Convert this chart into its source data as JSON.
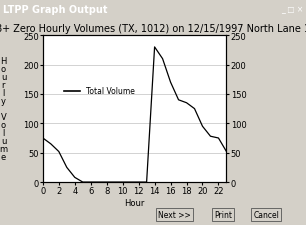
{
  "title": "8+ Zero Hourly Volumes (TX, 1012) on 12/15/1997 North Lane 1",
  "xlabel": "Hour",
  "hours": [
    0,
    1,
    2,
    3,
    4,
    5,
    6,
    7,
    8,
    9,
    10,
    11,
    12,
    13,
    14,
    15,
    16,
    17,
    18,
    19,
    20,
    21,
    22,
    23
  ],
  "volumes": [
    75,
    65,
    52,
    25,
    8,
    0,
    0,
    0,
    0,
    0,
    0,
    0,
    0,
    0,
    230,
    210,
    170,
    140,
    135,
    125,
    95,
    78,
    75,
    52
  ],
  "ylim": [
    0,
    250
  ],
  "xlim": [
    0,
    23
  ],
  "line_color": "#000000",
  "bg_color": "#d4d0c8",
  "plot_bg_color": "#ffffff",
  "legend_label": "Total Volume",
  "title_fontsize": 7,
  "axis_fontsize": 6,
  "tick_fontsize": 6,
  "window_title": "LTPP Graph Output",
  "titlebar_color": "#000080",
  "xticks": [
    0,
    2,
    4,
    6,
    8,
    10,
    12,
    14,
    16,
    18,
    20,
    22
  ],
  "yticks": [
    0,
    50,
    100,
    150,
    200,
    250
  ]
}
